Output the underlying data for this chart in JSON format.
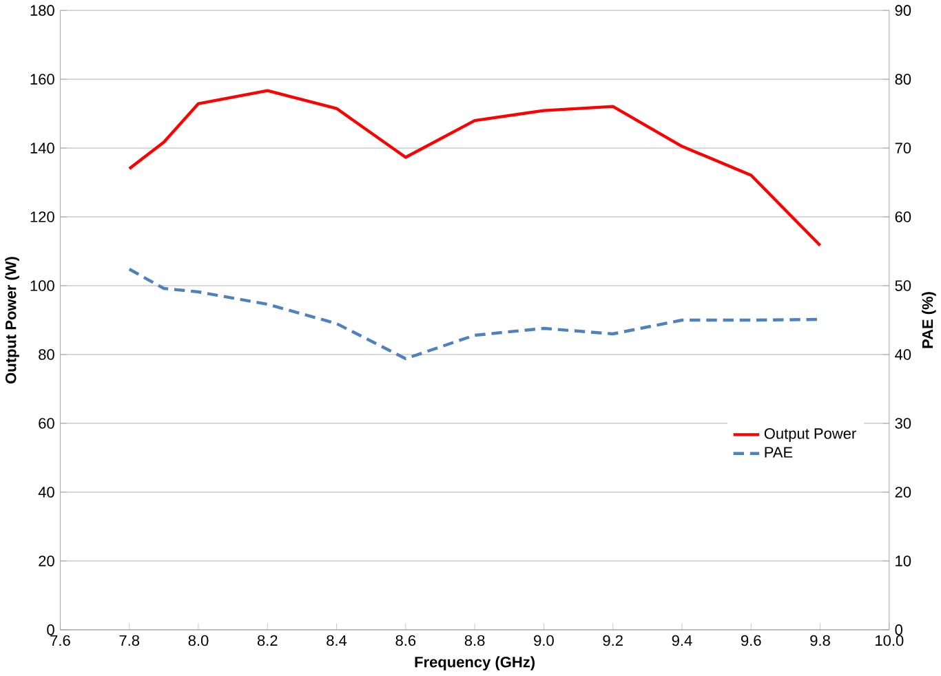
{
  "chart_data": {
    "type": "line",
    "xlabel": "Frequency (GHz)",
    "ylabel": "Output Power (W)",
    "y2label": "PAE (%)",
    "x": [
      7.8,
      7.9,
      8.0,
      8.2,
      8.4,
      8.6,
      8.8,
      9.0,
      9.2,
      9.4,
      9.6,
      9.8
    ],
    "series": [
      {
        "name": "Output Power",
        "color": "#ff0000",
        "line_style": "solid",
        "values": [
          134,
          141.7,
          152.9,
          156.7,
          151.5,
          137.3,
          148,
          150.9,
          152.1,
          140.5,
          132.1,
          111.7
        ]
      },
      {
        "name": "PAE",
        "color": "#4f81bd",
        "line_style": "dashed",
        "axis": "y2",
        "values": [
          52.4,
          49.6,
          49.1,
          47.3,
          44.5,
          39.4,
          42.8,
          43.8,
          43.0,
          45.0,
          45.0,
          45.1
        ]
      }
    ],
    "xlim": [
      7.6,
      10.0
    ],
    "xticks": [
      {
        "value": 7.6,
        "label": "7.6"
      },
      {
        "value": 7.8,
        "label": "7.8"
      },
      {
        "value": 8.0,
        "label": "8.0"
      },
      {
        "value": 8.2,
        "label": "8.2"
      },
      {
        "value": 8.4,
        "label": "8.4"
      },
      {
        "value": 8.6,
        "label": "8.6"
      },
      {
        "value": 8.8,
        "label": "8.8"
      },
      {
        "value": 9.0,
        "label": "9.0"
      },
      {
        "value": 9.2,
        "label": "9.2"
      },
      {
        "value": 9.4,
        "label": "9.4"
      },
      {
        "value": 9.6,
        "label": "9.6"
      },
      {
        "value": 9.8,
        "label": "9.8"
      },
      {
        "value": 10.0,
        "label": "10.0"
      }
    ],
    "ylim": [
      0,
      180
    ],
    "yticks": [
      0,
      20,
      40,
      60,
      80,
      100,
      120,
      140,
      160,
      180
    ],
    "y2lim": [
      0,
      90
    ],
    "y2ticks": [
      0,
      10,
      20,
      30,
      40,
      50,
      60,
      70,
      80,
      90
    ],
    "grid": "y",
    "legend": "right",
    "marker": "none"
  }
}
